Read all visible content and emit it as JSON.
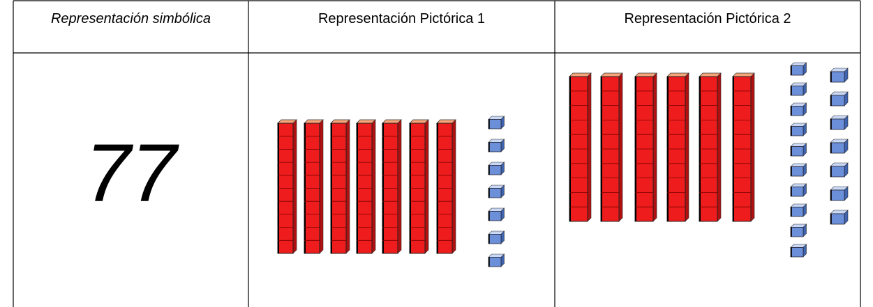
{
  "table": {
    "header": [
      "Representación simbólica",
      "Representación Pictórica 1",
      "Representación Pictórica 2"
    ],
    "rows": [
      [
        "77"
      ]
    ]
  }
}
